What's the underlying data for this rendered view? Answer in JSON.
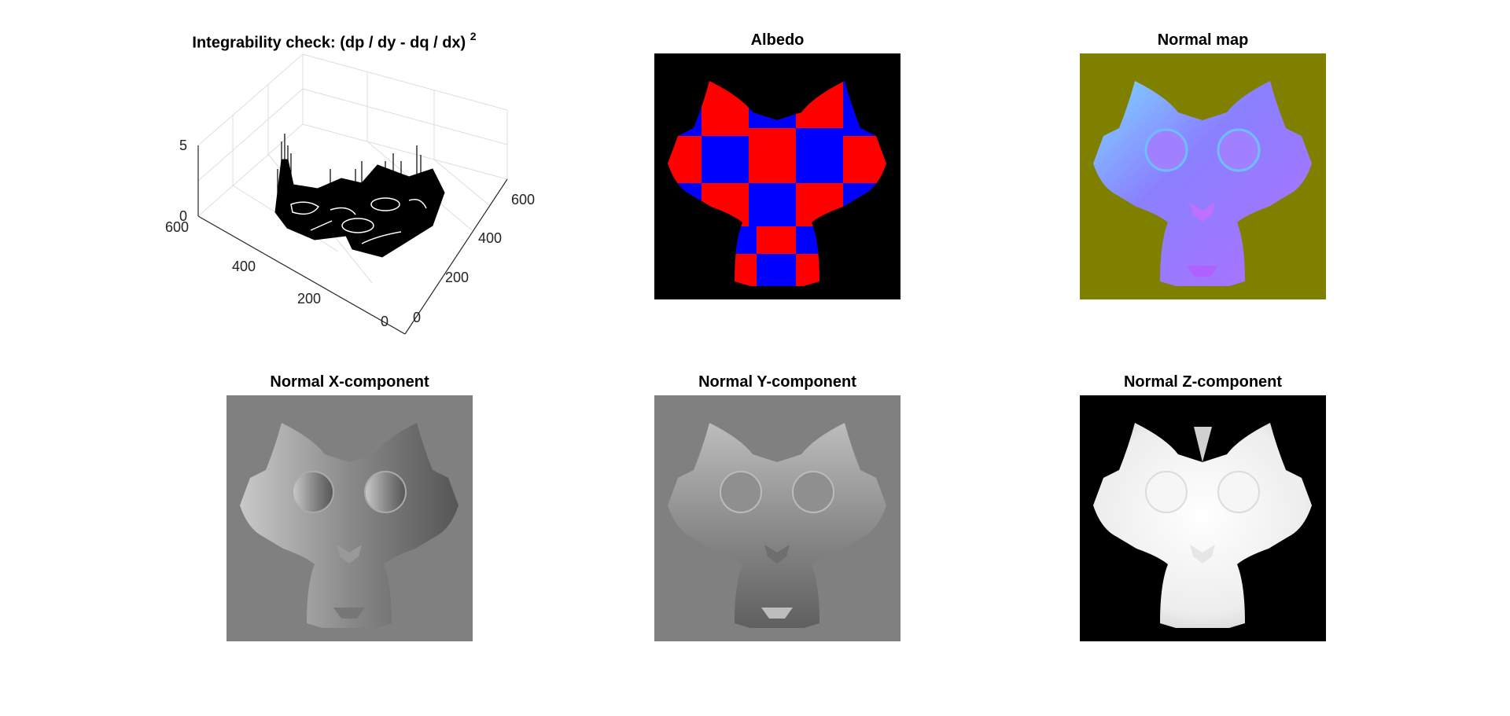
{
  "figure": {
    "panels": [
      {
        "id": "integrability",
        "title_main": "Integrability check: (dp / dy - dq / dx)",
        "title_sup": "2"
      },
      {
        "id": "albedo",
        "title": "Albedo"
      },
      {
        "id": "normal_map",
        "title": "Normal map"
      },
      {
        "id": "normal_x",
        "title": "Normal X-component"
      },
      {
        "id": "normal_y",
        "title": "Normal Y-component"
      },
      {
        "id": "normal_z",
        "title": "Normal Z-component"
      }
    ]
  },
  "chart_data": {
    "type": "surface",
    "title": "Integrability check: (dp / dy - dq / dx) 2",
    "x_ticks": [
      "0",
      "200",
      "400",
      "600"
    ],
    "y_ticks": [
      "0",
      "200",
      "400",
      "600"
    ],
    "z_ticks": [
      "0",
      "5"
    ],
    "xlim": [
      0,
      600
    ],
    "ylim": [
      0,
      600
    ],
    "zlim": [
      0,
      5
    ],
    "grid": true
  },
  "colors": {
    "albedo_red": "#ff0000",
    "albedo_blue": "#0000ff",
    "albedo_bg": "#000000",
    "normal_map_bg": "#808000",
    "normal_map_face": "#8a80ff",
    "normal_x_bg": "#808080",
    "normal_y_bg": "#808080",
    "normal_z_bg": "#000000"
  }
}
